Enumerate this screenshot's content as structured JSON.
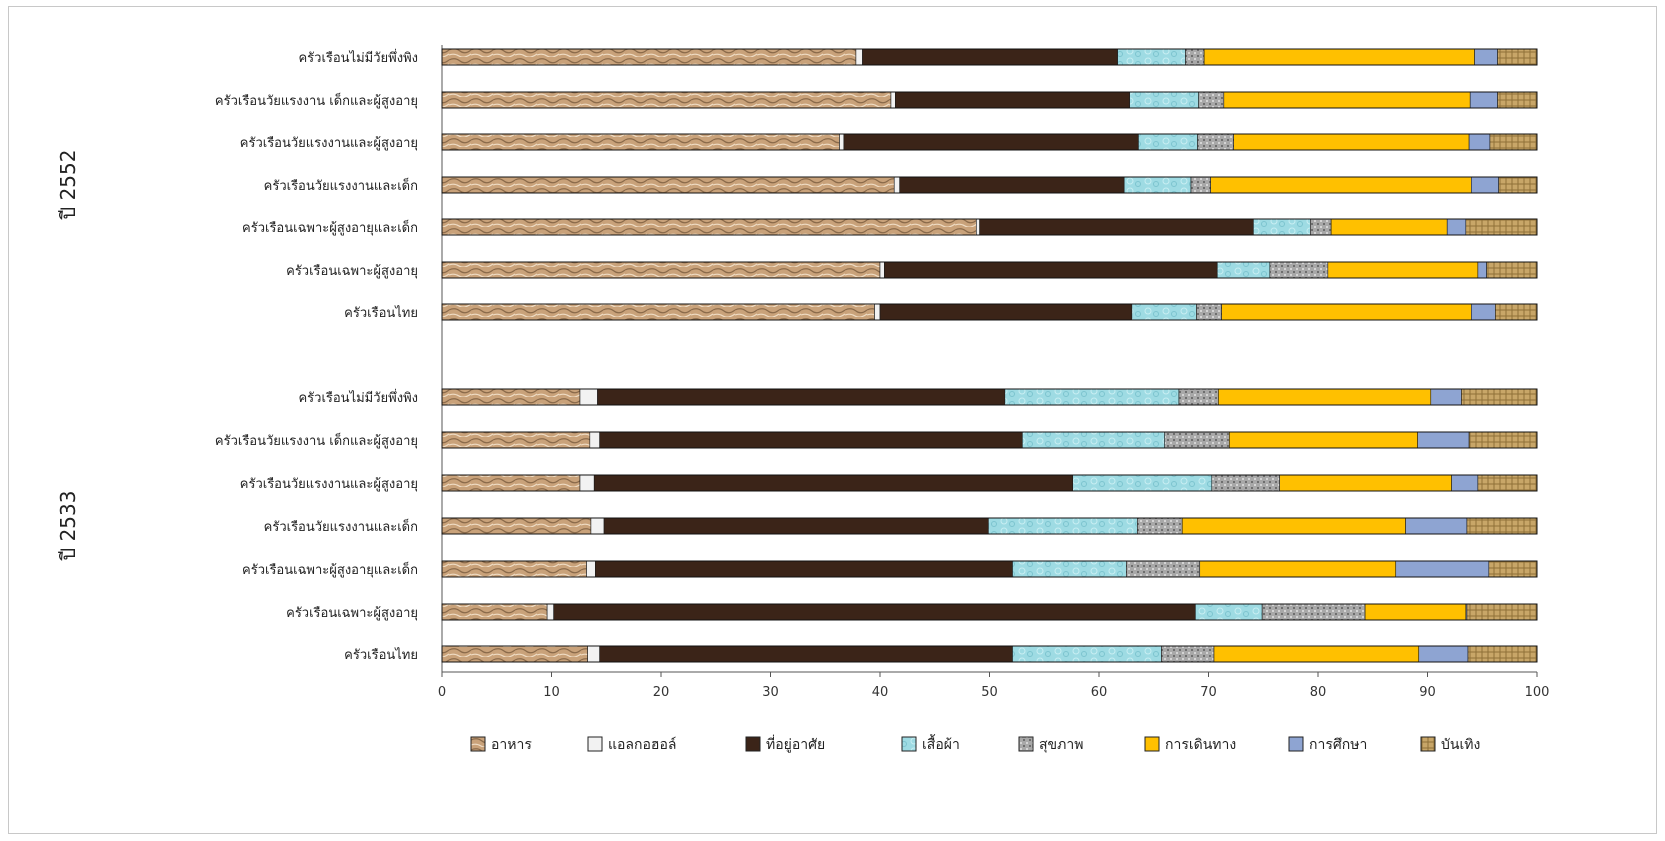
{
  "chart_data": {
    "type": "bar",
    "orientation": "horizontal",
    "stacked": true,
    "xlim": [
      0,
      100
    ],
    "ticks": [
      0,
      10,
      20,
      30,
      40,
      50,
      60,
      70,
      80,
      90,
      100
    ],
    "grid": false,
    "legend_position": "bottom",
    "groups": [
      {
        "label": "ปี 2552",
        "categories": [
          "ครัวเรือนไม่มีวัยพึ่งพิง",
          "ครัวเรือนวัยแรงงาน เด็กและผู้สูงอายุ",
          "ครัวเรือนวัยแรงงานและผู้สูงอายุ",
          "ครัวเรือนวัยแรงงานและเด็ก",
          "ครัวเรือนเฉพาะผู้สูงอายุและเด็ก",
          "ครัวเรือนเฉพาะผู้สูงอายุ",
          "ครัวเรือนไทย"
        ],
        "series": [
          {
            "name": "อาหาร",
            "values": [
              37.8,
              41.0,
              36.3,
              41.3,
              48.8,
              40.0,
              39.5
            ]
          },
          {
            "name": "แอลกอฮอล์",
            "values": [
              0.6,
              0.4,
              0.4,
              0.5,
              0.3,
              0.4,
              0.5
            ]
          },
          {
            "name": "ที่อยู่อาศัย",
            "values": [
              23.3,
              21.4,
              26.9,
              20.5,
              25.0,
              30.4,
              23.0
            ]
          },
          {
            "name": "เสื้อผ้า",
            "values": [
              6.2,
              6.3,
              5.4,
              6.1,
              5.2,
              4.8,
              5.9
            ]
          },
          {
            "name": "สุขภาพ",
            "values": [
              1.7,
              2.3,
              3.3,
              1.8,
              1.9,
              5.3,
              2.3
            ]
          },
          {
            "name": "การเดินทาง",
            "values": [
              24.7,
              22.5,
              21.5,
              23.8,
              10.6,
              13.7,
              22.8
            ]
          },
          {
            "name": "การศึกษา",
            "values": [
              2.1,
              2.5,
              1.9,
              2.5,
              1.7,
              0.8,
              2.2
            ]
          },
          {
            "name": "บันเทิง",
            "values": [
              3.6,
              3.6,
              4.3,
              3.5,
              6.5,
              4.6,
              3.8
            ]
          }
        ]
      },
      {
        "label": "ปี 2533",
        "categories": [
          "ครัวเรือนไม่มีวัยพึ่งพิง",
          "ครัวเรือนวัยแรงงาน เด็กและผู้สูงอายุ",
          "ครัวเรือนวัยแรงงานและผู้สูงอายุ",
          "ครัวเรือนวัยแรงงานและเด็ก",
          "ครัวเรือนเฉพาะผู้สูงอายุและเด็ก",
          "ครัวเรือนเฉพาะผู้สูงอายุ",
          "ครัวเรือนไทย"
        ],
        "series": [
          {
            "name": "อาหาร",
            "values": [
              12.6,
              13.5,
              12.6,
              13.6,
              13.2,
              9.6,
              13.3
            ]
          },
          {
            "name": "แอลกอฮอล์",
            "values": [
              1.6,
              0.9,
              1.3,
              1.2,
              0.8,
              0.6,
              1.1
            ]
          },
          {
            "name": "ที่อยู่อาศัย",
            "values": [
              37.2,
              38.6,
              43.7,
              35.1,
              38.1,
              58.6,
              37.7
            ]
          },
          {
            "name": "เสื้อผ้า",
            "values": [
              15.9,
              13.0,
              12.7,
              13.6,
              10.4,
              6.1,
              13.6
            ]
          },
          {
            "name": "สุขภาพ",
            "values": [
              3.6,
              5.9,
              6.2,
              4.1,
              6.7,
              9.4,
              4.8
            ]
          },
          {
            "name": "การเดินทาง",
            "values": [
              19.4,
              17.2,
              15.7,
              20.4,
              17.9,
              9.2,
              18.7
            ]
          },
          {
            "name": "การศึกษา",
            "values": [
              2.8,
              4.7,
              2.4,
              5.6,
              8.5,
              0.1,
              4.5
            ]
          },
          {
            "name": "บันเทิง",
            "values": [
              6.9,
              6.2,
              5.4,
              6.4,
              4.4,
              6.4,
              6.3
            ]
          }
        ]
      }
    ],
    "colors": [
      "#c9a27a",
      "#f2f2f2",
      "#3b2418",
      "#9edbe3",
      "#a8a8a8",
      "#ffc000",
      "#8ea4d2",
      "#c8a668"
    ]
  }
}
